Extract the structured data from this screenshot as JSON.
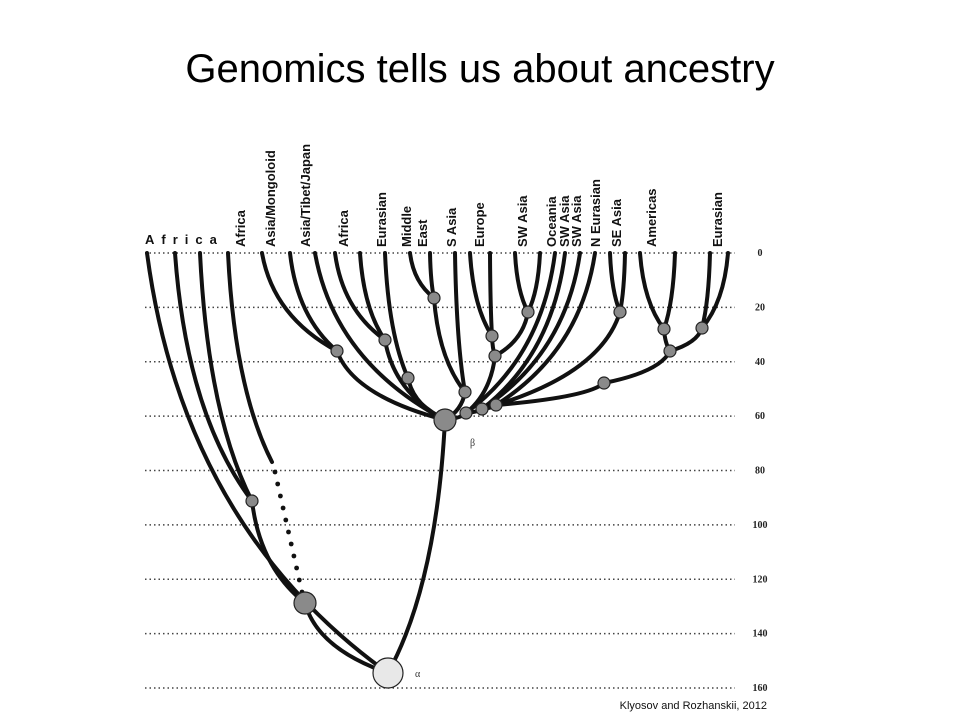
{
  "title": "Genomics tells us about ancestry",
  "figure": {
    "root_label": "Africa",
    "leaf_labels": [
      "Africa",
      "Asia/Mongoloid",
      "Asia/Tibet/Japan",
      "Africa",
      "Eurasian",
      "Middle",
      "East",
      "S Asia",
      "Europe",
      "SW Asia",
      "Oceania",
      "SW Asia",
      "SW Asia",
      "N Eurasian",
      "SE Asia",
      "Americas",
      "Eurasian"
    ],
    "axis": {
      "ticks": [
        0,
        20,
        40,
        60,
        80,
        100,
        120,
        140,
        160
      ]
    },
    "node_labels": [
      "β",
      "α"
    ],
    "citation": "Klyosov and Rozhanskii, 2012"
  }
}
